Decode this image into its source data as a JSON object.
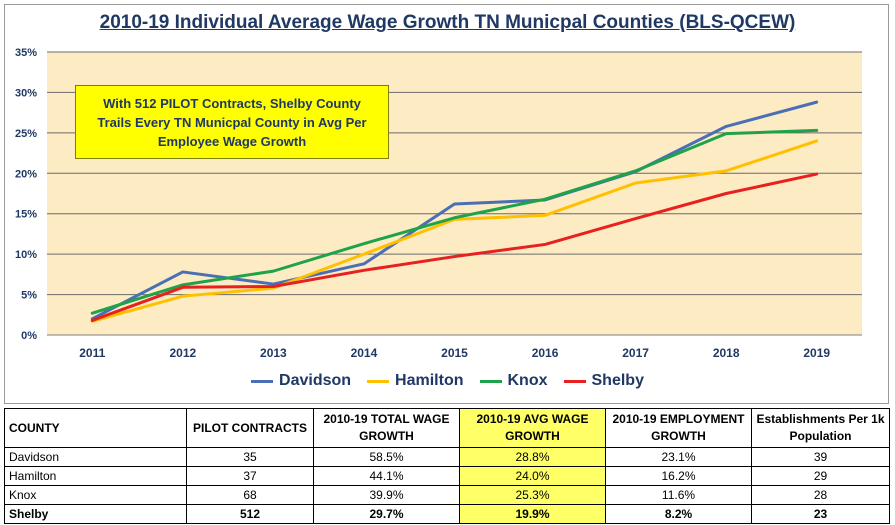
{
  "chart_data": {
    "type": "line",
    "title": "2010-19 Individual Average Wage Growth TN Municpal Counties (BLS-QCEW)",
    "x": [
      "2011",
      "2012",
      "2013",
      "2014",
      "2015",
      "2016",
      "2017",
      "2018",
      "2019"
    ],
    "ylim": [
      0,
      35
    ],
    "yticks": [
      "0%",
      "5%",
      "10%",
      "15%",
      "20%",
      "25%",
      "30%",
      "35%"
    ],
    "grid": true,
    "legend_position": "bottom",
    "series": [
      {
        "name": "Davidson",
        "color": "#4a6fb5",
        "values": [
          2.0,
          7.8,
          6.3,
          8.8,
          16.2,
          16.7,
          20.2,
          25.8,
          28.8
        ]
      },
      {
        "name": "Hamilton",
        "color": "#ffc000",
        "values": [
          1.7,
          4.8,
          5.8,
          10.0,
          14.3,
          14.8,
          18.8,
          20.3,
          24.0
        ]
      },
      {
        "name": "Knox",
        "color": "#1fa34a",
        "values": [
          2.7,
          6.2,
          7.9,
          11.3,
          14.5,
          16.8,
          20.3,
          24.9,
          25.3
        ]
      },
      {
        "name": "Shelby",
        "color": "#e8201e",
        "values": [
          1.8,
          5.9,
          6.0,
          8.0,
          9.7,
          11.2,
          14.4,
          17.5,
          19.9
        ]
      }
    ],
    "annotation": "With 512 PILOT Contracts, Shelby County Trails Every TN Municpal County in Avg Per Employee Wage Growth",
    "plot_background": "#fdebc4"
  },
  "table": {
    "headers": [
      "COUNTY",
      "PILOT CONTRACTS",
      "2010-19 TOTAL WAGE GROWTH",
      "2010-19  AVG WAGE GROWTH",
      "2010-19 EMPLOYMENT GROWTH",
      "Establishments Per 1k Population"
    ],
    "rows": [
      [
        "Davidson",
        "35",
        "58.5%",
        "28.8%",
        "23.1%",
        "39"
      ],
      [
        "Hamilton",
        "37",
        "44.1%",
        "24.0%",
        "16.2%",
        "29"
      ],
      [
        "Knox",
        "68",
        "39.9%",
        "25.3%",
        "11.6%",
        "28"
      ],
      [
        "Shelby",
        "512",
        "29.7%",
        "19.9%",
        "8.2%",
        "23"
      ]
    ],
    "highlight_color": "#ffff66"
  }
}
